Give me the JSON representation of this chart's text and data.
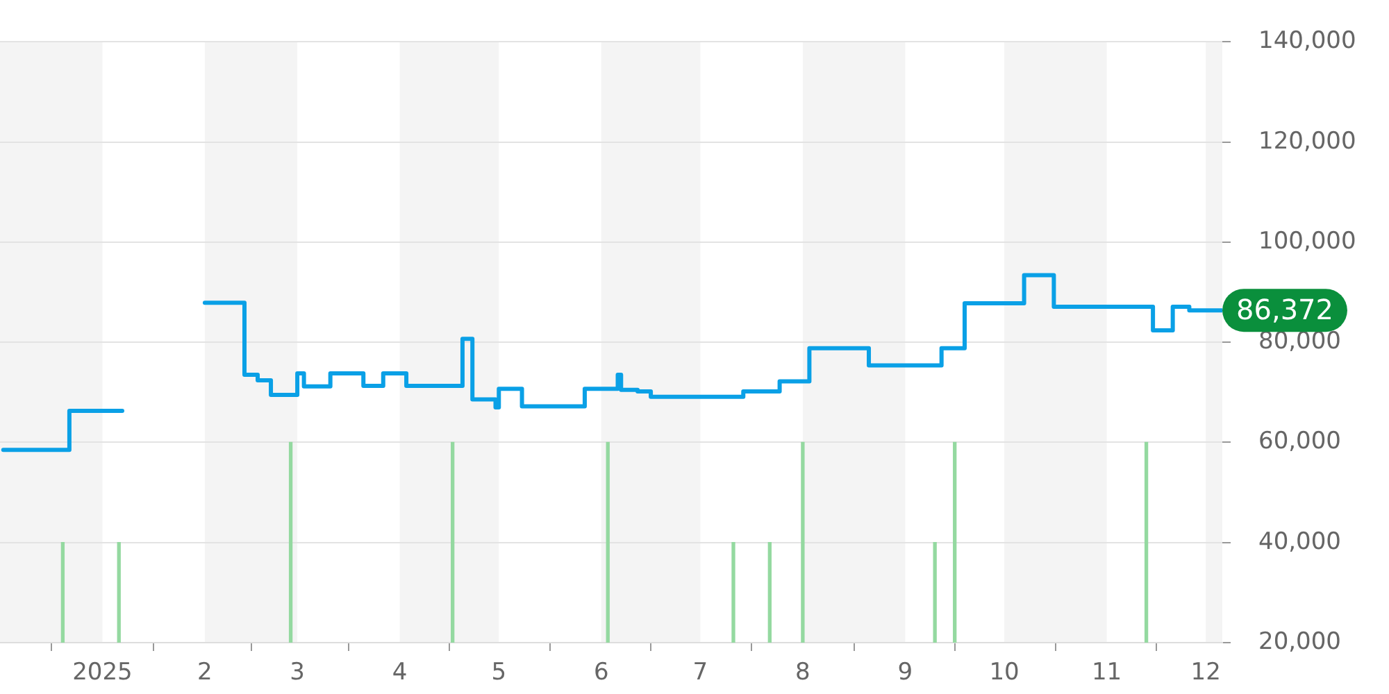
{
  "chart_data": {
    "type": "step",
    "xlim": [
      "2024-12-01",
      "2025-12-06"
    ],
    "xticks": [
      {
        "value": "2025-01-01",
        "label": "2025"
      },
      {
        "value": "2025-02-01",
        "label": "2"
      },
      {
        "value": "2025-03-01",
        "label": "3"
      },
      {
        "value": "2025-04-01",
        "label": "4"
      },
      {
        "value": "2025-05-01",
        "label": "5"
      },
      {
        "value": "2025-06-01",
        "label": "6"
      },
      {
        "value": "2025-07-01",
        "label": "7"
      },
      {
        "value": "2025-08-01",
        "label": "8"
      },
      {
        "value": "2025-09-01",
        "label": "9"
      },
      {
        "value": "2025-10-01",
        "label": "10"
      },
      {
        "value": "2025-11-01",
        "label": "11"
      },
      {
        "value": "2025-12-01",
        "label": "12"
      }
    ],
    "ylim": [
      20000,
      140000
    ],
    "yticks": [
      {
        "value": 20000,
        "label": "20,000"
      },
      {
        "value": 40000,
        "label": "40,000"
      },
      {
        "value": 60000,
        "label": "60,000"
      },
      {
        "value": 80000,
        "label": "80,000"
      },
      {
        "value": 100000,
        "label": "100,000"
      },
      {
        "value": 120000,
        "label": "120,000"
      },
      {
        "value": 140000,
        "label": "140,000"
      }
    ],
    "grid": "y",
    "bands": [
      {
        "axis": "x",
        "from": "2024-12-01",
        "to": "2025-01-01",
        "color": "#f4f4f4"
      },
      {
        "axis": "x",
        "from": "2025-02-01",
        "to": "2025-03-01",
        "color": "#f4f4f4"
      },
      {
        "axis": "x",
        "from": "2025-04-01",
        "to": "2025-05-01",
        "color": "#f4f4f4"
      },
      {
        "axis": "x",
        "from": "2025-06-01",
        "to": "2025-07-01",
        "color": "#f4f4f4"
      },
      {
        "axis": "x",
        "from": "2025-08-01",
        "to": "2025-09-01",
        "color": "#f4f4f4"
      },
      {
        "axis": "x",
        "from": "2025-10-01",
        "to": "2025-11-01",
        "color": "#f4f4f4"
      },
      {
        "axis": "x",
        "from": "2025-12-01",
        "to": "2025-12-06",
        "color": "#f4f4f4"
      }
    ],
    "annotations": [
      {
        "text": "86,372",
        "x": "2025-12-06",
        "y": 86372
      }
    ],
    "series": [
      {
        "color": "#0aa0e6",
        "x": [
          "2024-12-02",
          "2024-12-22",
          "2025-01-07",
          "2025-01-20",
          "2025-02-01",
          "2025-02-13",
          "2025-02-17",
          "2025-02-21",
          "2025-03-01",
          "2025-03-03",
          "2025-03-11",
          "2025-03-21",
          "2025-03-27",
          "2025-04-03",
          "2025-04-20",
          "2025-04-23",
          "2025-04-30",
          "2025-05-01",
          "2025-05-08",
          "2025-05-27",
          "2025-06-06",
          "2025-06-07",
          "2025-06-12",
          "2025-06-16",
          "2025-07-14",
          "2025-07-25",
          "2025-08-03",
          "2025-08-21",
          "2025-09-12",
          "2025-09-19",
          "2025-10-07",
          "2025-10-16",
          "2025-11-15",
          "2025-11-21",
          "2025-11-26",
          "2025-12-06"
        ],
        "values": [
          58500,
          66300,
          66300,
          null,
          87900,
          73500,
          72400,
          69500,
          73800,
          71200,
          73800,
          71300,
          73800,
          71300,
          80700,
          68600,
          67000,
          70700,
          67200,
          70700,
          73500,
          70500,
          70200,
          69100,
          70200,
          72200,
          78800,
          75400,
          78800,
          87800,
          93400,
          87100,
          82400,
          87100,
          86372,
          86372
        ]
      },
      {
        "type": "bar",
        "color": "#94d9a0",
        "x": [
          "2024-12-20",
          "2025-01-06",
          "2025-02-27",
          "2025-04-17",
          "2025-06-03",
          "2025-07-11",
          "2025-07-22",
          "2025-08-01",
          "2025-09-10",
          "2025-09-16",
          "2025-11-13"
        ],
        "values": [
          40000,
          40000,
          60000,
          60000,
          60000,
          40000,
          40000,
          60000,
          40000,
          60000,
          60000
        ]
      }
    ]
  }
}
